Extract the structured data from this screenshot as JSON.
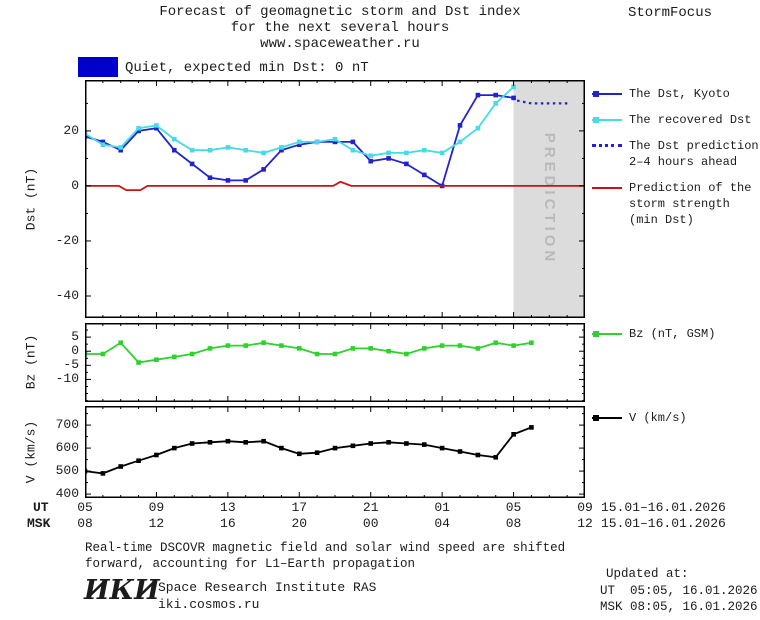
{
  "header": {
    "title_line1": "Forecast of geomagnetic storm and Dst index",
    "title_line2": "for the next several hours",
    "title_line3": "www.spaceweather.ru",
    "brand": "StormFocus"
  },
  "status_banner": {
    "label": "Quiet, expected min Dst: 0 nT",
    "color": "#0000cc"
  },
  "prediction_band": {
    "label": "PREDICTION",
    "fill": "#dcdcdc",
    "text_color": "#b9b9b9"
  },
  "legend": {
    "dst_kyoto": "The Dst, Kyoto",
    "recovered": "The recovered Dst",
    "prediction_line1": "The Dst prediction",
    "prediction_line2": "2–4 hours ahead",
    "storm_line1": "Prediction of the",
    "storm_line2": "storm strength",
    "storm_line3": "(min Dst)",
    "bz": "Bz (nT, GSM)",
    "v": "V (km/s)"
  },
  "axes": {
    "dst_ylabel": "Dst (nT)",
    "bz_ylabel": "Bz (nT)",
    "v_ylabel": "V (km/s)",
    "ut_label": "UT",
    "msk_label": "MSK",
    "ut_ticks": [
      "05",
      "09",
      "13",
      "17",
      "21",
      "01",
      "05",
      "09"
    ],
    "msk_ticks": [
      "08",
      "12",
      "16",
      "20",
      "00",
      "04",
      "08",
      "12"
    ],
    "ut_date": "15.01–16.01.2026",
    "msk_date": "15.01–16.01.2026"
  },
  "footer": {
    "note_line1": "Real-time DSCOVR magnetic field and solar wind speed are shifted",
    "note_line2": "forward, accounting for L1–Earth propagation",
    "updated_label": "Updated at:",
    "updated_ut": "UT  05:05, 16.01.2026",
    "updated_msk": "MSK 08:05, 16.01.2026",
    "logo": "ИКИ",
    "institute": "Space Research Institute RAS",
    "website": "iki.cosmos.ru"
  },
  "chart_data": [
    {
      "type": "line",
      "title": "Forecast of geomagnetic storm and Dst index",
      "ylabel": "Dst (nT)",
      "xlabel": "UT hours, 15.01–16.01.2026",
      "xlim": [
        5,
        33
      ],
      "ylim": [
        -48,
        38.5
      ],
      "yticks": [
        20,
        0,
        -20,
        -40
      ],
      "ytick_minor": 10,
      "grid": false,
      "legend_position": "right",
      "prediction_region_x": [
        29,
        33
      ],
      "series": [
        {
          "name": "The Dst, Kyoto",
          "color": "#2323cd",
          "marker": "square",
          "x": [
            5,
            6,
            7,
            8,
            9,
            10,
            11,
            12,
            13,
            14,
            15,
            16,
            17,
            18,
            19,
            20,
            21,
            22,
            23,
            24,
            25,
            26,
            27,
            28,
            29
          ],
          "values": [
            18,
            16,
            13,
            20,
            21,
            13,
            8,
            3,
            2,
            2,
            6,
            13,
            15,
            16,
            16,
            16,
            9,
            10,
            8,
            4,
            0,
            22,
            33,
            33,
            32
          ]
        },
        {
          "name": "The recovered Dst",
          "color": "#45dbe8",
          "marker": "square",
          "x": [
            5,
            6,
            7,
            8,
            9,
            10,
            11,
            12,
            13,
            14,
            15,
            16,
            17,
            18,
            19,
            20,
            21,
            22,
            23,
            24,
            25,
            26,
            27,
            28,
            29
          ],
          "values": [
            19,
            15,
            14,
            21,
            22,
            17,
            13,
            13,
            14,
            13,
            12,
            14,
            16,
            16,
            17,
            13,
            11,
            12,
            12,
            13,
            12,
            16,
            21,
            30,
            36
          ]
        },
        {
          "name": "The Dst prediction 2–4 hours ahead",
          "color": "#2323cd",
          "style": "dotted",
          "x": [
            29.2,
            30,
            31,
            32.2
          ],
          "values": [
            31,
            30,
            30,
            30
          ]
        },
        {
          "name": "Prediction of the storm strength (min Dst)",
          "color": "#d01010",
          "x": [
            5,
            6.9,
            7.3,
            8.1,
            8.5,
            18.9,
            19.3,
            19.9,
            33
          ],
          "values": [
            0,
            0,
            -1.5,
            -1.5,
            0,
            0,
            1.5,
            0,
            0
          ]
        }
      ]
    },
    {
      "type": "line",
      "title": "",
      "ylabel": "Bz (nT)",
      "xlim": [
        5,
        33
      ],
      "ylim": [
        -18,
        10
      ],
      "yticks": [
        5,
        0,
        -5,
        -10
      ],
      "ytick_minor": 2.5,
      "grid": false,
      "series": [
        {
          "name": "Bz (nT, GSM)",
          "color": "#2fd12f",
          "marker": "square",
          "x": [
            5,
            6,
            7,
            8,
            9,
            10,
            11,
            12,
            13,
            14,
            15,
            16,
            17,
            18,
            19,
            20,
            21,
            22,
            23,
            24,
            25,
            26,
            27,
            28,
            29,
            30
          ],
          "values": [
            -1,
            -1,
            3,
            -4,
            -3,
            -2,
            -1,
            1,
            2,
            2,
            3,
            2,
            1,
            -1,
            -1,
            1,
            1,
            0,
            -1,
            1,
            2,
            2,
            1,
            3,
            2,
            3
          ]
        }
      ]
    },
    {
      "type": "line",
      "title": "",
      "ylabel": "V (km/s)",
      "xlim": [
        5,
        33
      ],
      "ylim": [
        383,
        783
      ],
      "yticks": [
        700,
        600,
        500,
        400
      ],
      "ytick_minor": 50,
      "grid": false,
      "series": [
        {
          "name": "V (km/s)",
          "color": "#000000",
          "marker": "square",
          "x": [
            5,
            6,
            7,
            8,
            9,
            10,
            11,
            12,
            13,
            14,
            15,
            16,
            17,
            18,
            19,
            20,
            21,
            22,
            23,
            24,
            25,
            26,
            27,
            28,
            29,
            30
          ],
          "values": [
            500,
            490,
            520,
            545,
            570,
            600,
            620,
            625,
            630,
            625,
            630,
            600,
            575,
            580,
            600,
            610,
            620,
            625,
            620,
            615,
            600,
            585,
            570,
            560,
            660,
            690
          ]
        }
      ]
    }
  ]
}
